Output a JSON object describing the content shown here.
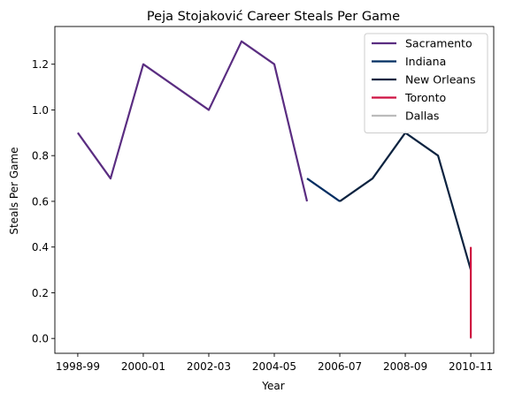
{
  "chart_data": {
    "type": "line",
    "title": "Peja Stojaković Career Steals Per Game",
    "xlabel": "Year",
    "ylabel": "Steals Per Game",
    "x_tick_labels": [
      "1998-99",
      "2000-01",
      "2002-03",
      "2004-05",
      "2006-07",
      "2008-09",
      "2010-11"
    ],
    "x_range": [
      -0.7,
      12.7
    ],
    "ylim": [
      -0.065,
      1.365
    ],
    "y_ticks": [
      0.0,
      0.2,
      0.4,
      0.6,
      0.8,
      1.0,
      1.2
    ],
    "grid": false,
    "legend_position": "top-right",
    "series": [
      {
        "name": "Sacramento",
        "color": "#5a2d81",
        "points": [
          {
            "season": "1998-99",
            "value": 0.9
          },
          {
            "season": "1999-00",
            "value": 0.7
          },
          {
            "season": "2000-01",
            "value": 1.2
          },
          {
            "season": "2002-03",
            "value": 1.0
          },
          {
            "season": "2003-04",
            "value": 1.3
          },
          {
            "season": "2004-05",
            "value": 1.2
          },
          {
            "season": "2005-06",
            "value": 0.6
          }
        ]
      },
      {
        "name": "Indiana",
        "color": "#002d62",
        "points": [
          {
            "season": "2005-06",
            "value": 0.7
          },
          {
            "season": "2006-07",
            "value": 0.6
          }
        ]
      },
      {
        "name": "New Orleans",
        "color": "#0c2340",
        "points": [
          {
            "season": "2006-07",
            "value": 0.6
          },
          {
            "season": "2007-08",
            "value": 0.7
          },
          {
            "season": "2008-09",
            "value": 0.9
          },
          {
            "season": "2009-10",
            "value": 0.8
          },
          {
            "season": "2010-11",
            "value": 0.3
          }
        ]
      },
      {
        "name": "Toronto",
        "color": "#ce1141",
        "points": [
          {
            "season": "2010-11",
            "value": 0.4
          },
          {
            "season": "2010-11",
            "value": 0.0
          }
        ]
      },
      {
        "name": "Dallas",
        "color": "#bbbbbb",
        "points": [
          {
            "season": "2010-11",
            "value": 0.0
          }
        ]
      }
    ]
  }
}
